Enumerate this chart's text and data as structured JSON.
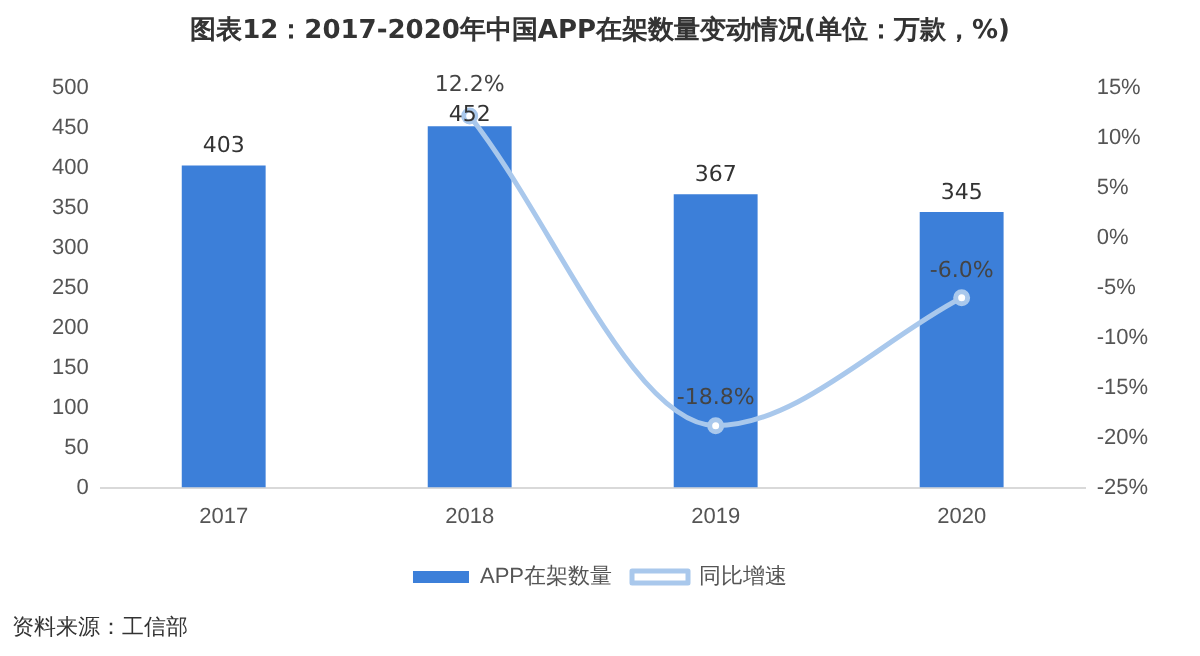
{
  "chart_data": {
    "type": "bar",
    "title": "图表12：2017-2020年中国APP在架数量变动情况(单位：万款，%)",
    "categories": [
      "2017",
      "2018",
      "2019",
      "2020"
    ],
    "series": [
      {
        "name": "APP在架数量",
        "color": "#3c7fd9",
        "values": [
          403,
          452,
          367,
          345
        ],
        "value_labels": [
          "403",
          "452",
          "367",
          "345"
        ]
      },
      {
        "name": "同比增速",
        "type": "line",
        "axis": "y2",
        "color": "#a9c8ec",
        "values": [
          null,
          12.2,
          -18.8,
          -6.0
        ],
        "value_labels": [
          null,
          "12.2%",
          "-18.8%",
          "-6.0%"
        ]
      }
    ],
    "ylim": [
      0,
      500
    ],
    "yticks": [
      0,
      50,
      100,
      150,
      200,
      250,
      300,
      350,
      400,
      450,
      500
    ],
    "y2lim": [
      -25,
      15
    ],
    "y2ticks": [
      {
        "value": -25,
        "label": "-25%"
      },
      {
        "value": -20,
        "label": "-20%"
      },
      {
        "value": -15,
        "label": "-15%"
      },
      {
        "value": -10,
        "label": "-10%"
      },
      {
        "value": -5,
        "label": "-5%"
      },
      {
        "value": 0,
        "label": "0%"
      },
      {
        "value": 5,
        "label": "5%"
      },
      {
        "value": 10,
        "label": "10%"
      },
      {
        "value": 15,
        "label": "15%"
      }
    ],
    "grid": false,
    "legend": "bottom",
    "marker": "circle",
    "line_style": "solid",
    "annotations": [
      "资料来源：工信部"
    ]
  }
}
